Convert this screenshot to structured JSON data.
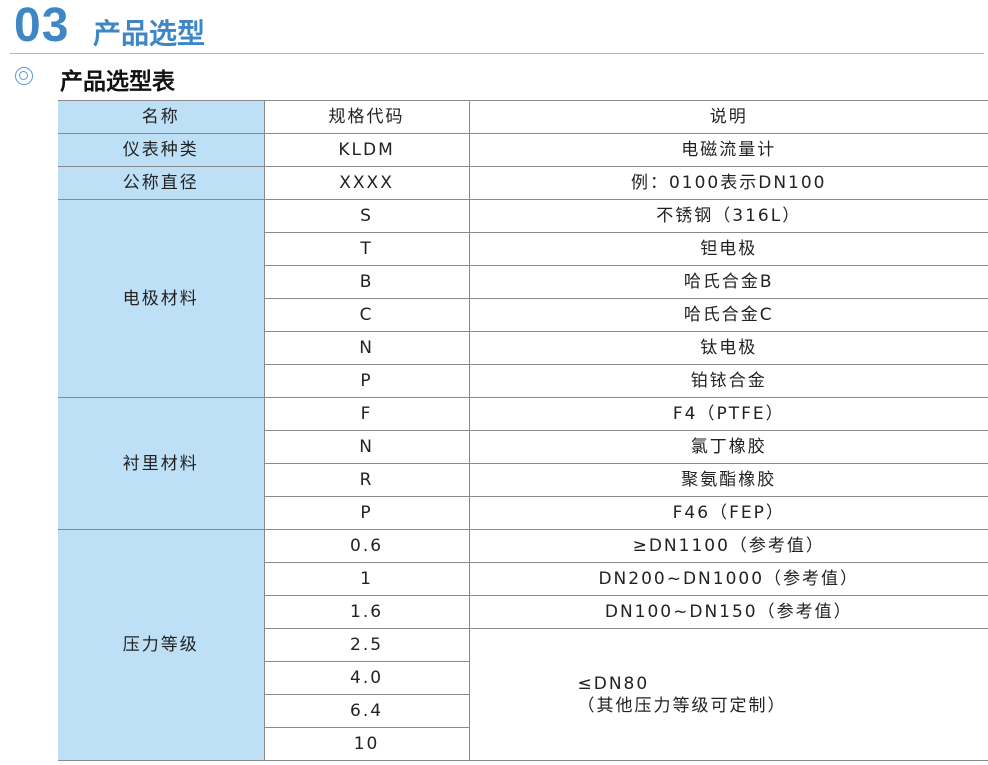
{
  "header": {
    "number": "03",
    "title": "产品选型",
    "subtitle": "产品选型表",
    "accent": "#3f86c4",
    "icon": "double-circle-icon"
  },
  "table": {
    "headers": [
      "名称",
      "规格代码",
      "说明"
    ],
    "groups": [
      {
        "name": "仪表种类",
        "rows": [
          {
            "code": "KLDM",
            "desc": "电磁流量计"
          }
        ]
      },
      {
        "name": "公称直径",
        "rows": [
          {
            "code": "XXXX",
            "desc": "例：0100表示DN100"
          }
        ]
      },
      {
        "name": "电极材料",
        "rows": [
          {
            "code": "S",
            "desc": "不锈钢（316L）"
          },
          {
            "code": "T",
            "desc": "钽电极"
          },
          {
            "code": "B",
            "desc": "哈氏合金B"
          },
          {
            "code": "C",
            "desc": "哈氏合金C"
          },
          {
            "code": "N",
            "desc": "钛电极"
          },
          {
            "code": "P",
            "desc": "铂铱合金"
          }
        ]
      },
      {
        "name": "衬里材料",
        "rows": [
          {
            "code": "F",
            "desc": "F4（PTFE）"
          },
          {
            "code": "N",
            "desc": "氯丁橡胶"
          },
          {
            "code": "R",
            "desc": "聚氨酯橡胶"
          },
          {
            "code": "P",
            "desc": "F46（FEP）"
          }
        ]
      },
      {
        "name": "压力等级",
        "rows": [
          {
            "code": "0.6",
            "desc": "≥DN1100（参考值）"
          },
          {
            "code": "1",
            "desc": "DN200~DN1000（参考值）"
          },
          {
            "code": "1.6",
            "desc": "DN100~DN150（参考值）"
          },
          {
            "code": "2.5",
            "desc": "≤DN80\n（其他压力等级可定制）",
            "span": 4
          },
          {
            "code": "4.0"
          },
          {
            "code": "6.4"
          },
          {
            "code": "10"
          }
        ]
      }
    ],
    "first_col_color": "#bde0f7"
  }
}
